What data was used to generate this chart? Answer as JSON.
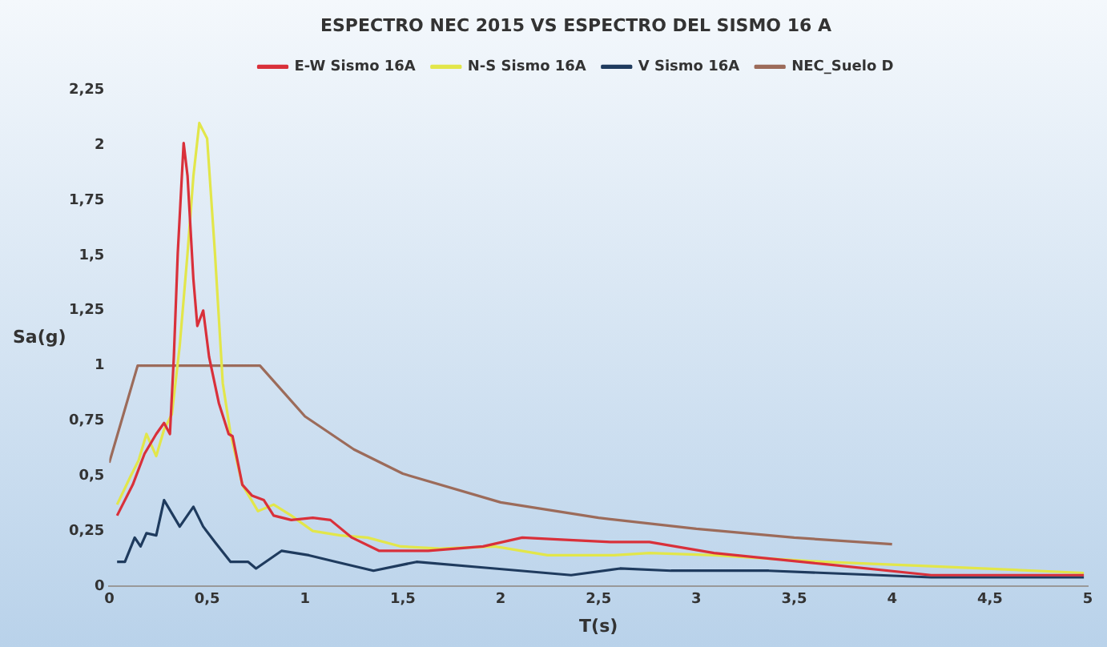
{
  "chart_data": {
    "type": "line",
    "title": "ESPECTRO NEC 2015 VS ESPECTRO DEL SISMO 16 A",
    "xlabel": "T(s)",
    "ylabel": "Sa(g)",
    "xlim": [
      0,
      5
    ],
    "ylim": [
      0,
      2.25
    ],
    "xticks": [
      0,
      {
        "value": 0.5,
        "label": "0,5"
      },
      1,
      {
        "value": 1.5,
        "label": "1,5"
      },
      2,
      {
        "value": 2.5,
        "label": "2,5"
      },
      3,
      {
        "value": 3.5,
        "label": "3,5"
      },
      4,
      {
        "value": 4.5,
        "label": "4,5"
      },
      5
    ],
    "yticks": [
      0,
      {
        "value": 0.25,
        "label": "0,25"
      },
      {
        "value": 0.5,
        "label": "0,5"
      },
      {
        "value": 0.75,
        "label": "0,75"
      },
      1,
      {
        "value": 1.25,
        "label": "1,25"
      },
      {
        "value": 1.5,
        "label": "1,5"
      },
      {
        "value": 1.75,
        "label": "1,75"
      },
      2,
      {
        "value": 2.25,
        "label": "2,25"
      }
    ],
    "grid": false,
    "legend": "top right",
    "marker": "none",
    "line_style": "solid",
    "series": [
      {
        "name": "E-W Sismo 16A",
        "color": "#d9303a",
        "x": [
          0.04,
          0.12,
          0.18,
          0.24,
          0.28,
          0.31,
          0.33,
          0.35,
          0.38,
          0.4,
          0.43,
          0.45,
          0.48,
          0.51,
          0.56,
          0.61,
          0.63,
          0.68,
          0.73,
          0.79,
          0.84,
          0.93,
          1.04,
          1.13,
          1.24,
          1.38,
          1.63,
          1.91,
          2.11,
          2.33,
          2.56,
          2.76,
          3.09,
          3.65,
          4.2,
          4.98
        ],
        "values": [
          0.32,
          0.46,
          0.6,
          0.69,
          0.74,
          0.69,
          1.04,
          1.51,
          2.01,
          1.86,
          1.39,
          1.18,
          1.25,
          1.04,
          0.83,
          0.69,
          0.68,
          0.46,
          0.41,
          0.39,
          0.32,
          0.3,
          0.31,
          0.3,
          0.22,
          0.16,
          0.16,
          0.18,
          0.22,
          0.21,
          0.2,
          0.2,
          0.15,
          0.1,
          0.05,
          0.05
        ]
      },
      {
        "name": "N-S Sismo 16A",
        "color": "#e2e64a",
        "x": [
          0.04,
          0.11,
          0.15,
          0.19,
          0.24,
          0.28,
          0.32,
          0.36,
          0.4,
          0.43,
          0.46,
          0.5,
          0.54,
          0.58,
          0.62,
          0.68,
          0.76,
          0.84,
          0.93,
          1.04,
          1.18,
          1.32,
          1.49,
          1.69,
          1.97,
          2.24,
          2.58,
          2.76,
          3.09,
          3.65,
          4.2,
          4.98
        ],
        "values": [
          0.37,
          0.5,
          0.57,
          0.69,
          0.59,
          0.71,
          0.78,
          1.09,
          1.51,
          1.86,
          2.1,
          2.03,
          1.51,
          0.92,
          0.69,
          0.46,
          0.34,
          0.37,
          0.32,
          0.25,
          0.23,
          0.22,
          0.18,
          0.17,
          0.18,
          0.14,
          0.14,
          0.15,
          0.14,
          0.11,
          0.09,
          0.06
        ]
      },
      {
        "name": "V Sismo 16A",
        "color": "#1f3b5e",
        "x": [
          0.04,
          0.08,
          0.13,
          0.16,
          0.19,
          0.24,
          0.28,
          0.36,
          0.43,
          0.48,
          0.54,
          0.62,
          0.71,
          0.75,
          0.88,
          1.02,
          1.16,
          1.35,
          1.57,
          1.97,
          2.36,
          2.61,
          2.87,
          3.37,
          3.93,
          4.2,
          4.98
        ],
        "values": [
          0.11,
          0.11,
          0.22,
          0.18,
          0.24,
          0.23,
          0.39,
          0.27,
          0.36,
          0.27,
          0.2,
          0.11,
          0.11,
          0.08,
          0.16,
          0.14,
          0.11,
          0.07,
          0.11,
          0.08,
          0.05,
          0.08,
          0.07,
          0.07,
          0.05,
          0.04,
          0.04
        ]
      },
      {
        "name": "NEC_Suelo D",
        "color": "#9c6b5a",
        "x": [
          0,
          0.145,
          0.77,
          1,
          1.25,
          1.5,
          2,
          2.5,
          3,
          3.5,
          4
        ],
        "values": [
          0.56,
          1,
          1,
          0.77,
          0.62,
          0.51,
          0.38,
          0.31,
          0.26,
          0.22,
          0.19
        ]
      }
    ]
  }
}
